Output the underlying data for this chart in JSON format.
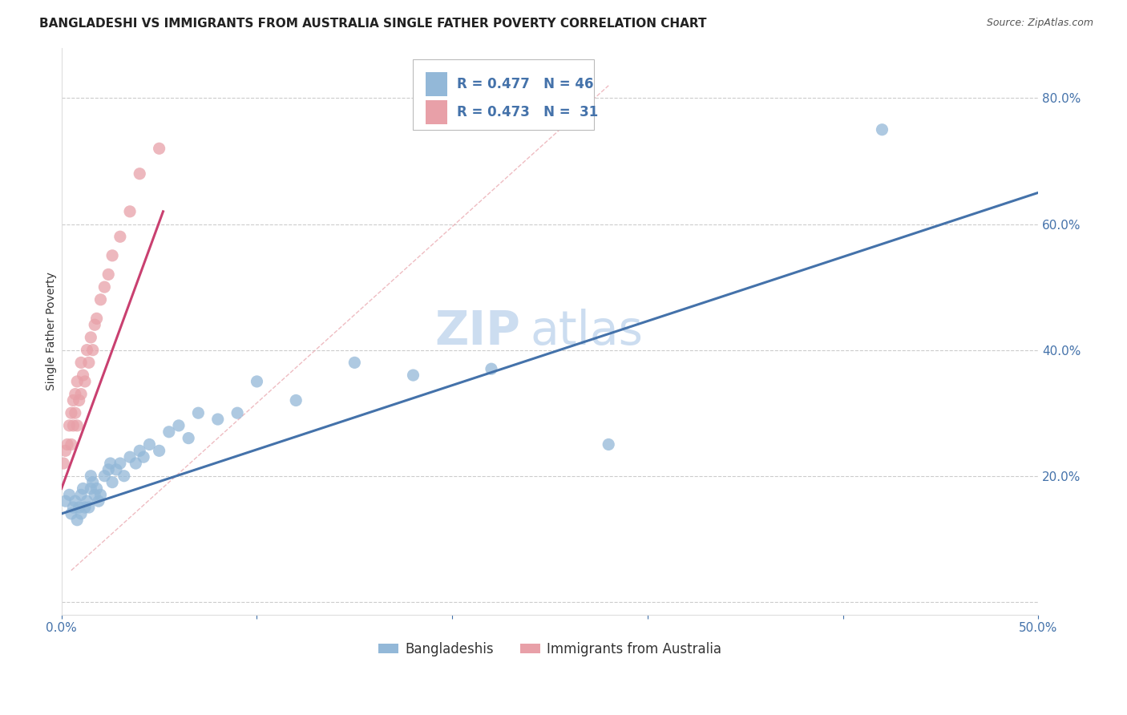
{
  "title": "BANGLADESHI VS IMMIGRANTS FROM AUSTRALIA SINGLE FATHER POVERTY CORRELATION CHART",
  "source": "Source: ZipAtlas.com",
  "ylabel_label": "Single Father Poverty",
  "xlim": [
    0.0,
    0.5
  ],
  "ylim": [
    -0.02,
    0.88
  ],
  "blue_R": 0.477,
  "blue_N": 46,
  "pink_R": 0.473,
  "pink_N": 31,
  "blue_color": "#93b8d8",
  "pink_color": "#e8a0a8",
  "blue_line_color": "#4472aa",
  "pink_line_color": "#c94070",
  "watermark_part1": "ZIP",
  "watermark_part2": "atlas",
  "legend_blue_label": "Bangladeshis",
  "legend_pink_label": "Immigrants from Australia",
  "blue_scatter_x": [
    0.002,
    0.004,
    0.005,
    0.006,
    0.007,
    0.008,
    0.009,
    0.01,
    0.01,
    0.011,
    0.012,
    0.013,
    0.014,
    0.015,
    0.015,
    0.016,
    0.017,
    0.018,
    0.019,
    0.02,
    0.022,
    0.024,
    0.025,
    0.026,
    0.028,
    0.03,
    0.032,
    0.035,
    0.038,
    0.04,
    0.042,
    0.045,
    0.05,
    0.055,
    0.06,
    0.065,
    0.07,
    0.08,
    0.09,
    0.1,
    0.12,
    0.15,
    0.18,
    0.22,
    0.28,
    0.42
  ],
  "blue_scatter_y": [
    0.16,
    0.17,
    0.14,
    0.15,
    0.16,
    0.13,
    0.15,
    0.14,
    0.17,
    0.18,
    0.15,
    0.16,
    0.15,
    0.18,
    0.2,
    0.19,
    0.17,
    0.18,
    0.16,
    0.17,
    0.2,
    0.21,
    0.22,
    0.19,
    0.21,
    0.22,
    0.2,
    0.23,
    0.22,
    0.24,
    0.23,
    0.25,
    0.24,
    0.27,
    0.28,
    0.26,
    0.3,
    0.29,
    0.3,
    0.35,
    0.32,
    0.38,
    0.36,
    0.37,
    0.25,
    0.75
  ],
  "pink_scatter_x": [
    0.001,
    0.002,
    0.003,
    0.004,
    0.005,
    0.005,
    0.006,
    0.006,
    0.007,
    0.007,
    0.008,
    0.008,
    0.009,
    0.01,
    0.01,
    0.011,
    0.012,
    0.013,
    0.014,
    0.015,
    0.016,
    0.017,
    0.018,
    0.02,
    0.022,
    0.024,
    0.026,
    0.03,
    0.035,
    0.04,
    0.05
  ],
  "pink_scatter_y": [
    0.22,
    0.24,
    0.25,
    0.28,
    0.25,
    0.3,
    0.28,
    0.32,
    0.3,
    0.33,
    0.28,
    0.35,
    0.32,
    0.33,
    0.38,
    0.36,
    0.35,
    0.4,
    0.38,
    0.42,
    0.4,
    0.44,
    0.45,
    0.48,
    0.5,
    0.52,
    0.55,
    0.58,
    0.62,
    0.68,
    0.72
  ],
  "pink_line_x": [
    0.0,
    0.052
  ],
  "pink_line_y": [
    0.18,
    0.62
  ],
  "blue_line_x": [
    0.0,
    0.5
  ],
  "blue_line_y": [
    0.14,
    0.65
  ],
  "dashed_line_x": [
    0.005,
    0.28
  ],
  "dashed_line_y": [
    0.05,
    0.82
  ],
  "grid_color": "#cccccc",
  "background_color": "#ffffff",
  "title_fontsize": 11,
  "axis_label_fontsize": 10,
  "tick_fontsize": 11,
  "legend_fontsize": 12,
  "watermark_fontsize_zip": 42,
  "watermark_fontsize_atlas": 42,
  "watermark_color": "#ccddf0",
  "source_fontsize": 9,
  "legend_text_color": "#4472aa",
  "tick_color": "#4472aa"
}
